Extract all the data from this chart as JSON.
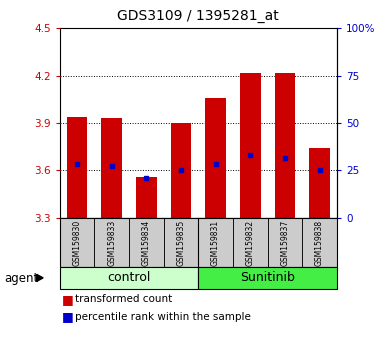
{
  "title": "GDS3109 / 1395281_at",
  "samples": [
    "GSM159830",
    "GSM159833",
    "GSM159834",
    "GSM159835",
    "GSM159831",
    "GSM159832",
    "GSM159837",
    "GSM159838"
  ],
  "red_values": [
    3.94,
    3.93,
    3.56,
    3.9,
    4.06,
    4.22,
    4.22,
    3.74
  ],
  "blue_values": [
    3.64,
    3.63,
    3.55,
    3.6,
    3.64,
    3.7,
    3.68,
    3.6
  ],
  "ylim_left": [
    3.3,
    4.5
  ],
  "yticks_left": [
    3.3,
    3.6,
    3.9,
    4.2,
    4.5
  ],
  "yticks_right": [
    0,
    25,
    50,
    75,
    100
  ],
  "ytick_labels_left": [
    "3.3",
    "3.6",
    "3.9",
    "4.2",
    "4.5"
  ],
  "ytick_labels_right": [
    "0",
    "25",
    "50",
    "75",
    "100%"
  ],
  "bar_bottom": 3.3,
  "bar_width": 0.6,
  "control_color": "#ccffcc",
  "sunitinib_color": "#44ee44",
  "red_color": "#cc0000",
  "blue_color": "#0000cc",
  "sample_box_color": "#cccccc",
  "plot_bg": "#ffffff",
  "legend_red_label": "transformed count",
  "legend_blue_label": "percentile rank within the sample"
}
